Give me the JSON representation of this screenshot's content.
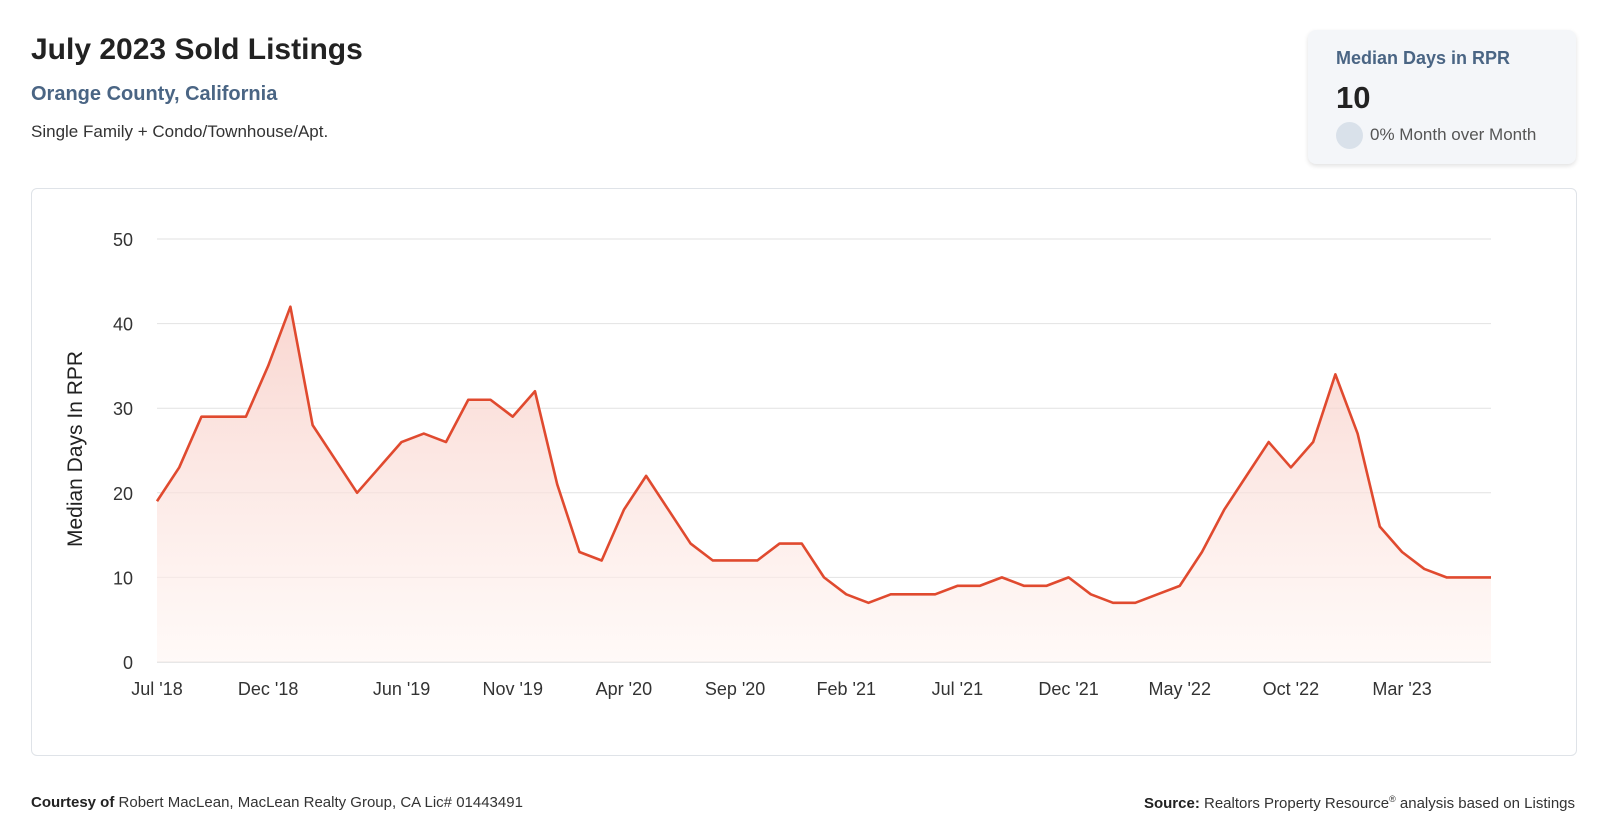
{
  "header": {
    "title": "July 2023 Sold Listings",
    "subtitle": "Orange County, California",
    "property_types": "Single Family + Condo/Townhouse/Apt."
  },
  "stat_card": {
    "label": "Median Days in RPR",
    "value": "10",
    "change": "0% Month over Month"
  },
  "footer": {
    "courtesy_label": "Courtesy of",
    "courtesy_text": "Robert MacLean, MacLean Realty Group, CA Lic# 01443491",
    "source_label": "Source:",
    "source_text_1": "Realtors Property Resource",
    "source_mark": "®",
    "source_text_2": "analysis based on Listings"
  },
  "colors": {
    "line": "#e04a2f",
    "fill_top": "#f7c9c1",
    "fill_bottom": "#fff6f3",
    "grid": "#e2e2e2",
    "subtitle": "#4a6584"
  },
  "chart_data": {
    "type": "area",
    "title": "",
    "xlabel": "",
    "ylabel": "Median Days In RPR",
    "ylim": [
      0,
      50
    ],
    "yticks": [
      0,
      10,
      20,
      30,
      40,
      50
    ],
    "xticks": [
      "Jul '18",
      "Dec '18",
      "Jun '19",
      "Nov '19",
      "Apr '20",
      "Sep '20",
      "Feb '21",
      "Jul '21",
      "Dec '21",
      "May '22",
      "Oct '22",
      "Mar '23"
    ],
    "grid": true,
    "x": [
      "Jul '18",
      "Aug '18",
      "Sep '18",
      "Oct '18",
      "Nov '18",
      "Dec '18",
      "Jan '19",
      "Feb '19",
      "Mar '19",
      "Apr '19",
      "May '19",
      "Jun '19",
      "Jul '19",
      "Aug '19",
      "Sep '19",
      "Oct '19",
      "Nov '19",
      "Dec '19",
      "Jan '20",
      "Feb '20",
      "Mar '20",
      "Apr '20",
      "May '20",
      "Jun '20",
      "Jul '20",
      "Aug '20",
      "Sep '20",
      "Oct '20",
      "Nov '20",
      "Dec '20",
      "Jan '21",
      "Feb '21",
      "Mar '21",
      "Apr '21",
      "May '21",
      "Jun '21",
      "Jul '21",
      "Aug '21",
      "Sep '21",
      "Oct '21",
      "Nov '21",
      "Dec '21",
      "Jan '22",
      "Feb '22",
      "Mar '22",
      "Apr '22",
      "May '22",
      "Jun '22",
      "Jul '22",
      "Aug '22",
      "Sep '22",
      "Oct '22",
      "Nov '22",
      "Dec '22",
      "Jan '23",
      "Feb '23",
      "Mar '23",
      "Apr '23",
      "May '23",
      "Jun '23",
      "Jul '23"
    ],
    "series": [
      {
        "values": [
          19,
          23,
          29,
          29,
          29,
          35,
          42,
          28,
          24,
          20,
          23,
          26,
          27,
          26,
          31,
          31,
          29,
          32,
          21,
          13,
          12,
          18,
          22,
          18,
          14,
          12,
          12,
          12,
          14,
          14,
          10,
          8,
          7,
          8,
          8,
          8,
          9,
          9,
          10,
          9,
          9,
          10,
          8,
          7,
          7,
          8,
          9,
          13,
          18,
          22,
          26,
          23,
          26,
          34,
          27,
          16,
          13,
          11,
          10,
          10,
          10
        ]
      }
    ]
  }
}
